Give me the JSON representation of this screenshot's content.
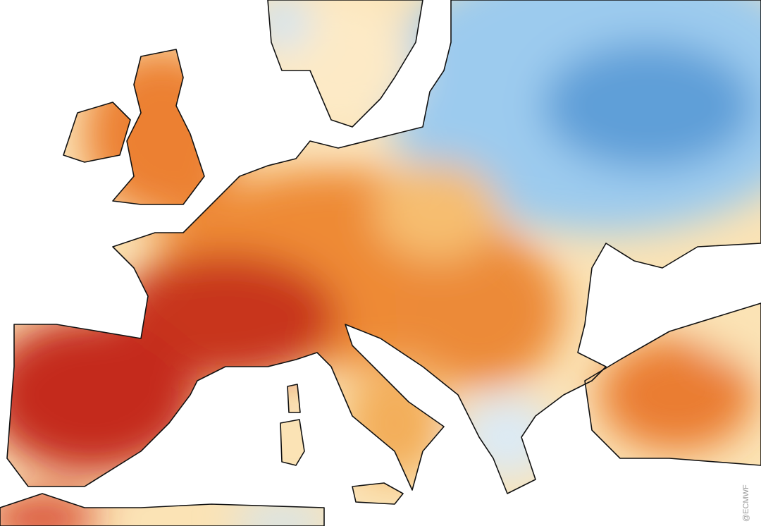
{
  "credit": "@ECMWF"
}
